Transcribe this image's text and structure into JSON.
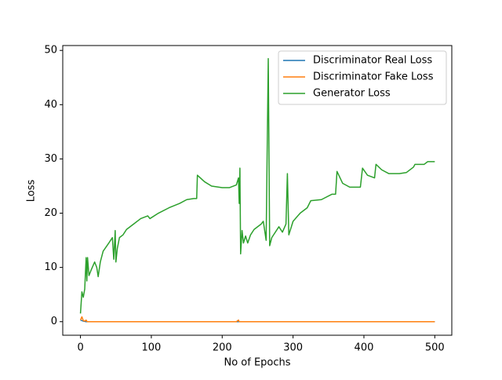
{
  "chart_data": {
    "type": "line",
    "xlabel": "No of Epochs",
    "ylabel": "Loss",
    "x": [
      0,
      2,
      4,
      6,
      8,
      9,
      10,
      12,
      15,
      20,
      23,
      25,
      28,
      32,
      40,
      45,
      47,
      49,
      50,
      52,
      55,
      60,
      65,
      75,
      85,
      95,
      98,
      110,
      125,
      140,
      150,
      160,
      164,
      165,
      175,
      185,
      200,
      210,
      220,
      223,
      224,
      225,
      226,
      228,
      230,
      233,
      236,
      240,
      245,
      255,
      258,
      262,
      265,
      267,
      270,
      280,
      285,
      290,
      292,
      294,
      300,
      310,
      320,
      325,
      340,
      355,
      360,
      362,
      370,
      380,
      395,
      398,
      405,
      415,
      417,
      425,
      435,
      450,
      460,
      470,
      472,
      485,
      490,
      500
    ],
    "series": [
      {
        "name": "Discriminator Real Loss",
        "color": "#1f77b4",
        "values": [
          0.3,
          0.2,
          0.1,
          0.05,
          0,
          0,
          0,
          0,
          0,
          0,
          0,
          0,
          0,
          0,
          0,
          0,
          0,
          0,
          0,
          0,
          0,
          0,
          0,
          0,
          0,
          0,
          0,
          0,
          0,
          0,
          0,
          0,
          0,
          0,
          0,
          0,
          0,
          0,
          0,
          0,
          0,
          0,
          0,
          0,
          0,
          0,
          0,
          0,
          0,
          0,
          0,
          0,
          0,
          0,
          0,
          0,
          0,
          0,
          0,
          0,
          0,
          0,
          0,
          0,
          0,
          0,
          0,
          0,
          0,
          0,
          0,
          0,
          0,
          0,
          0,
          0,
          0,
          0,
          0,
          0,
          0,
          0,
          0,
          0
        ]
      },
      {
        "name": "Discriminator Fake Loss",
        "color": "#ff7f0e",
        "values": [
          0.3,
          0.9,
          0.2,
          0.1,
          0.3,
          0.05,
          0,
          0,
          0,
          0,
          0,
          0,
          0,
          0,
          0,
          0,
          0,
          0,
          0,
          0,
          0,
          0,
          0,
          0,
          0,
          0,
          0,
          0,
          0,
          0,
          0,
          0,
          0,
          0,
          0,
          0,
          0,
          0,
          0,
          0.3,
          0,
          0,
          0,
          0,
          0,
          0,
          0,
          0,
          0,
          0,
          0,
          0,
          0,
          0,
          0,
          0,
          0,
          0,
          0,
          0,
          0,
          0,
          0,
          0,
          0,
          0,
          0,
          0,
          0,
          0,
          0,
          0,
          0,
          0,
          0,
          0,
          0,
          0,
          0,
          0,
          0,
          0,
          0,
          0
        ]
      },
      {
        "name": "Generator Loss",
        "color": "#2ca02c",
        "values": [
          1.5,
          5.5,
          4.5,
          6,
          11.8,
          7.5,
          11.8,
          8.5,
          9.5,
          11,
          10,
          8.3,
          11,
          13,
          14.5,
          15.5,
          11.5,
          16.8,
          11,
          13.5,
          15.5,
          16,
          17,
          18,
          19,
          19.5,
          19,
          20,
          21,
          21.8,
          22.5,
          22.7,
          22.7,
          27,
          25.8,
          25,
          24.7,
          24.7,
          25.2,
          26.5,
          21.8,
          28.3,
          12.5,
          16.8,
          14.5,
          15.8,
          14.5,
          16,
          17,
          18,
          18.5,
          15,
          48.5,
          14,
          15.5,
          17.5,
          16.5,
          18,
          27.3,
          16,
          18.5,
          20,
          21,
          22.3,
          22.5,
          23.5,
          23.5,
          27.7,
          25.5,
          24.8,
          24.8,
          28.3,
          27,
          26.5,
          29,
          28,
          27.3,
          27.3,
          27.5,
          28.5,
          29,
          29,
          29.5,
          29.5
        ]
      }
    ],
    "xlim": [
      -25,
      524
    ],
    "ylim": [
      -2.5,
      50.9
    ],
    "xticks": [
      0,
      100,
      200,
      300,
      400,
      500
    ],
    "yticks": [
      0,
      10,
      20,
      30,
      40,
      50
    ],
    "legend": "upper right"
  }
}
